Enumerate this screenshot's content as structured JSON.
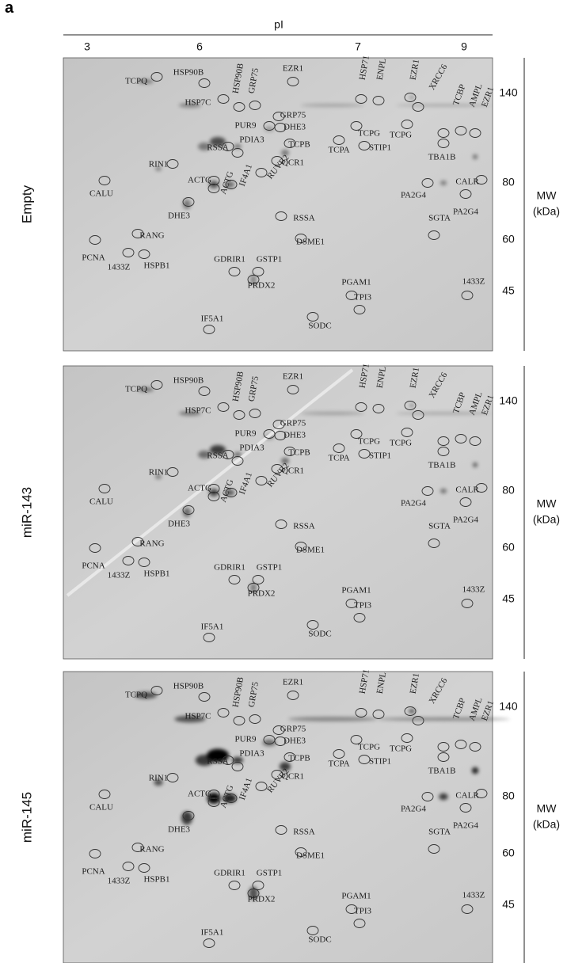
{
  "figure_label": "a",
  "pi_axis": {
    "title": "pI",
    "ticks": [
      "3",
      "6",
      "7",
      "9"
    ]
  },
  "panels": [
    {
      "label": "Empty",
      "mw_title": "MW",
      "mw_unit": "(kDa)",
      "mw_ticks": [
        "140",
        "80",
        "60",
        "45"
      ],
      "spots": [
        "HSP90B",
        "TCPQ",
        "HSP90B",
        "GRP75",
        "EZR1",
        "HSP71",
        "ENPL",
        "EZR1",
        "XRCC6",
        "HSP7C",
        "GRP75",
        "PUR9",
        "DHE3",
        "TCPG",
        "TCPG",
        "STIP1",
        "TCPA",
        "PDIA3",
        "RSSA",
        "TCPB",
        "QCR1",
        "TCBP",
        "AMPL",
        "EZR1",
        "TBA1B",
        "RIN1",
        "CALU",
        "ACTG",
        "IF4A1",
        "RUVB2",
        "ACTG",
        "PA2G4",
        "CALR",
        "PA2G4",
        "DHE3",
        "RSSA",
        "SGTA",
        "DSME1",
        "RANG",
        "PCNA",
        "1433Z",
        "HSPB1",
        "GDRIR1",
        "GSTP1",
        "PRDX2",
        "1433Z",
        "PGAM1",
        "TPI3",
        "IF5A1",
        "SODC"
      ]
    },
    {
      "label": "miR-143",
      "mw_title": "MW",
      "mw_unit": "(kDa)",
      "mw_ticks": [
        "140",
        "80",
        "60",
        "45"
      ],
      "spots": [
        "HSP90B",
        "TCPQ",
        "HSP90B",
        "GRP75",
        "EZR1",
        "HSP71",
        "ENPL",
        "EZR1",
        "XRCC6",
        "HSP7C",
        "GRP75",
        "PUR9",
        "DHE3",
        "TCPG",
        "TCPG",
        "STIP1",
        "TCPA",
        "PDIA3",
        "RSSA",
        "TCPB",
        "QCR1",
        "TCBP",
        "AMPL",
        "EZR1",
        "TBA1B",
        "RIN1",
        "CALU",
        "ACTG",
        "IF4A1",
        "RUVB2",
        "ACTG",
        "PA2G4",
        "CALR",
        "PA2G4",
        "DHE3",
        "RSSA",
        "SGTA",
        "DSME1",
        "RANG",
        "PCNA",
        "1433Z",
        "HSPB1",
        "GDRIR1",
        "GSTP1",
        "PRDX2",
        "1433Z",
        "PGAM1",
        "TPI3",
        "IF5A1",
        "SODC"
      ]
    },
    {
      "label": "miR-145",
      "mw_title": "MW",
      "mw_unit": "(kDa)",
      "mw_ticks": [
        "140",
        "80",
        "60",
        "45"
      ],
      "spots": [
        "HSP90B",
        "TCPQ",
        "HSP90B",
        "GRP75",
        "EZR1",
        "HSP71",
        "ENPL",
        "EZR1",
        "XRCC6",
        "HSP7C",
        "GRP75",
        "PUR9",
        "DHE3",
        "TCPG",
        "TCPG",
        "STIP1",
        "TCPA",
        "PDIA3",
        "RSSA",
        "TCPB",
        "QCR1",
        "TCBP",
        "AMPL",
        "EZR1",
        "TBA1B",
        "RIN1",
        "CALU",
        "ACTG",
        "IF4A1",
        "RUVB2",
        "ACTG",
        "PA2G4",
        "CALR",
        "PA2G4",
        "DHE3",
        "RSSA",
        "SGTA",
        "DSME1",
        "RANG",
        "PCNA",
        "1433Z",
        "HSPB1",
        "GDRIR1",
        "GSTP1",
        "PRDX2",
        "1433Z",
        "PGAM1",
        "TPI3",
        "IF5A1",
        "SODC"
      ]
    }
  ]
}
